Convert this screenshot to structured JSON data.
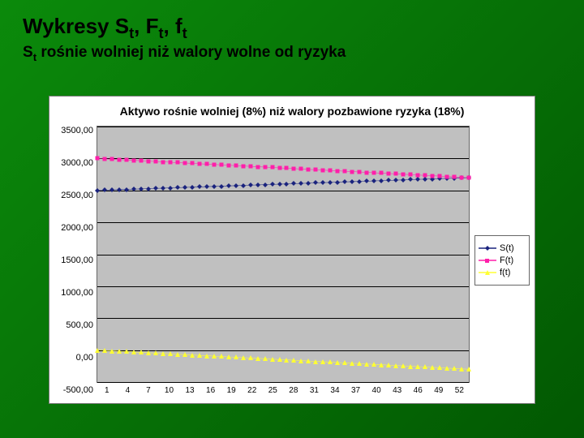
{
  "slide": {
    "background_gradient_from": "#0b8a0b",
    "background_gradient_to": "#025802",
    "headline_parts": [
      "Wykresy S",
      "t",
      ", F",
      "t",
      ", f",
      "t"
    ],
    "subhead_parts": [
      "S",
      "t",
      "  rośnie wolniej niż walory wolne od ryzyka"
    ]
  },
  "chart": {
    "title": "Aktywo rośnie wolniej (8%) niż walory pozbawione ryzyka (18%)",
    "type": "line-scatter",
    "plot_background": "#c0c0c0",
    "grid_color": "#000000",
    "border_color": "#666666",
    "ylim": [
      -500,
      3500
    ],
    "ytick_step": 500,
    "yticks": [
      "3500,00",
      "3000,00",
      "2500,00",
      "2000,00",
      "1500,00",
      "1000,00",
      "500,00",
      "0,00",
      "-500,00"
    ],
    "n_points": 52,
    "xticks": [
      1,
      4,
      7,
      10,
      13,
      16,
      19,
      22,
      25,
      28,
      31,
      34,
      37,
      40,
      43,
      46,
      49,
      52
    ],
    "series": [
      {
        "key": "S",
        "label": "S(t)",
        "color": "#1a237e",
        "marker": "diamond",
        "marker_size": 6,
        "line_width": 1.5,
        "y0": 2500,
        "y51": 2700,
        "slope": 3.92
      },
      {
        "key": "F",
        "label": "F(t)",
        "color": "#ff1faa",
        "marker": "square",
        "marker_size": 5,
        "line_width": 1.5,
        "y0": 3000,
        "y51": 2700,
        "slope": -5.88
      },
      {
        "key": "f",
        "label": "f(t)",
        "color": "#ffff33",
        "marker": "triangle",
        "marker_size": 6,
        "line_width": 1.5,
        "y0": 0,
        "y51": -300,
        "slope": -5.88
      }
    ],
    "legend_position": "right",
    "title_fontsize": 14,
    "tick_fontsize": 11
  }
}
